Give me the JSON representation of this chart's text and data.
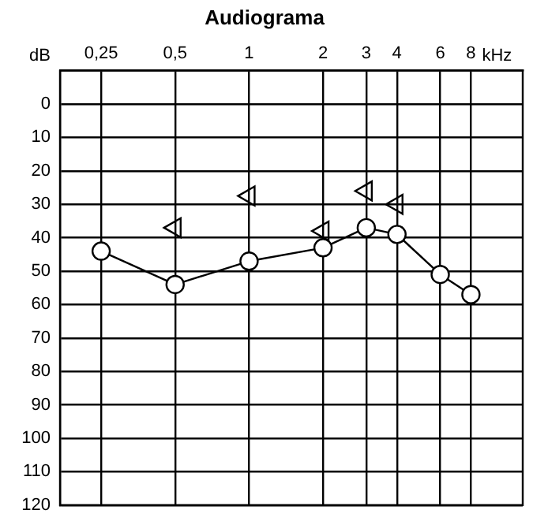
{
  "chart_data": {
    "type": "line",
    "title": "Audiograma",
    "ylabel": "dB",
    "xlabel": "kHz",
    "x": [
      0.25,
      0.5,
      1,
      2,
      3,
      4,
      6,
      8
    ],
    "series": [
      {
        "color": "#000000",
        "marker": "circle",
        "values": [
          44,
          54,
          47,
          43,
          37,
          39,
          51,
          57
        ]
      },
      {
        "type": "scatter",
        "color": "#000000",
        "marker": "triangle",
        "x": [
          0.5,
          1,
          2,
          3,
          4
        ],
        "values": [
          37,
          27.5,
          38,
          26,
          30
        ]
      }
    ],
    "log": "x",
    "xlim": [
      0.17,
      13
    ],
    "xticks": [
      {
        "value": 0.25,
        "label": "0,25"
      },
      {
        "value": 0.5,
        "label": "0,5"
      },
      1,
      2,
      3,
      4,
      6,
      8
    ],
    "ylim": [
      120,
      -10
    ],
    "yticks": [
      0,
      10,
      20,
      30,
      40,
      50,
      60,
      70,
      80,
      90,
      100,
      110,
      120
    ],
    "grid": true,
    "legend": false
  }
}
